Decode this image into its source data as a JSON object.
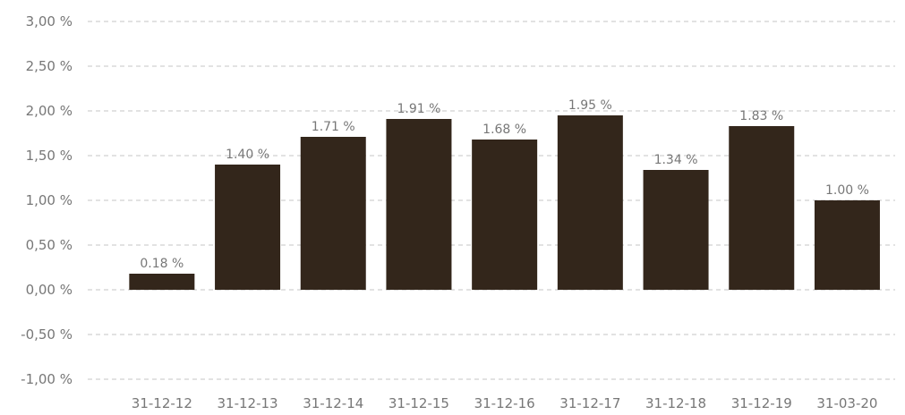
{
  "chart_data": {
    "type": "bar",
    "title": "",
    "xlabel": "",
    "ylabel": "",
    "categories": [
      "31-12-12",
      "31-12-13",
      "31-12-14",
      "31-12-15",
      "31-12-16",
      "31-12-17",
      "31-12-18",
      "31-12-19",
      "31-03-20"
    ],
    "values": [
      0.18,
      1.4,
      1.71,
      1.91,
      1.68,
      1.95,
      1.34,
      1.83,
      1.0
    ],
    "value_labels": [
      "0.18 %",
      "1.40 %",
      "1.71 %",
      "1.91 %",
      "1.68 %",
      "1.95 %",
      "1.34 %",
      "1.83 %",
      "1.00 %"
    ],
    "ylim": [
      -1.0,
      3.0
    ],
    "y_ticks": [
      3.0,
      2.5,
      2.0,
      1.5,
      1.0,
      0.5,
      0.0,
      -0.5,
      -1.0
    ],
    "y_tick_labels": [
      "3,00 %",
      "2,50 %",
      "2,00 %",
      "1,50 %",
      "1,00 %",
      "0,50 %",
      "0,00 %",
      "-0,50 %",
      "-1,00 %"
    ],
    "grid": true,
    "legend": "none"
  },
  "colors": {
    "bar": "#33261b",
    "grid": "#c4c4c4",
    "text": "#777777"
  }
}
